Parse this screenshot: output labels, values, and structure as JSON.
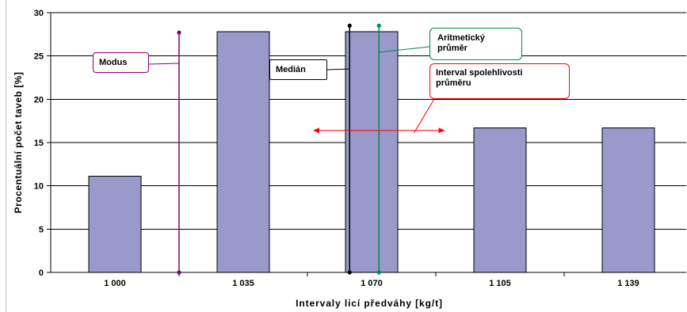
{
  "chart_data": {
    "type": "bar",
    "categories": [
      "1 000",
      "1 035",
      "1 070",
      "1 105",
      "1 139"
    ],
    "values": [
      11.1,
      27.8,
      27.8,
      16.7,
      16.7
    ],
    "xlabel": "Intervaly licí předváhy [kg/t]",
    "ylabel": "Procentuální počet taveb [%]",
    "ylim": [
      0,
      30
    ],
    "yticks": [
      0,
      5,
      10,
      15,
      20,
      25,
      30
    ],
    "grid": true,
    "bar_color": "#9999cc",
    "annotations": [
      {
        "kind": "vertical-line",
        "label": "Modus",
        "x": 1017.5,
        "y": [
          0,
          27.7
        ],
        "color": "#800080"
      },
      {
        "kind": "vertical-line",
        "label": "Medián",
        "x": 1064,
        "y": [
          0,
          28.5
        ],
        "color": "#000000"
      },
      {
        "kind": "vertical-line",
        "label": "Aritmetický průměr",
        "x": 1072,
        "y": [
          0,
          28.5
        ],
        "color": "#008a45"
      },
      {
        "kind": "double-arrow",
        "label": "Interval spolehlivosti průměru",
        "x": [
          1054,
          1090
        ],
        "y": 16.4,
        "color": "#ff0000"
      }
    ]
  }
}
